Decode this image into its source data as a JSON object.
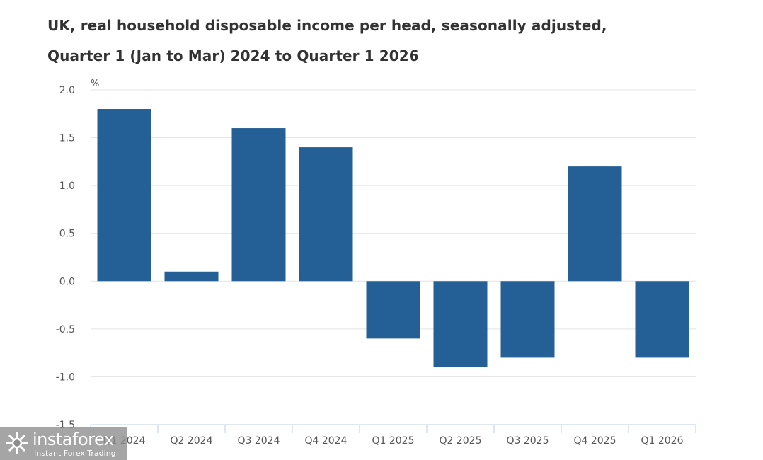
{
  "chart_data": {
    "type": "bar",
    "title": "UK, real household disposable income per head, seasonally adjusted,",
    "subtitle": "Quarter 1 (Jan to Mar) 2024 to Quarter 1 2026",
    "ylabel": "%",
    "xlabel": "",
    "categories": [
      "Q1 2024",
      "Q2 2024",
      "Q3 2024",
      "Q4 2024",
      "Q1 2025",
      "Q2 2025",
      "Q3 2025",
      "Q4 2025",
      "Q1 2026"
    ],
    "values": [
      1.8,
      0.1,
      1.6,
      1.4,
      -0.6,
      -0.9,
      -0.8,
      1.2,
      -0.8
    ],
    "ylim": [
      -1.5,
      2.0
    ],
    "yticks": [
      2.0,
      1.5,
      1.0,
      0.5,
      0.0,
      -0.5,
      -1.0,
      -1.5
    ],
    "ytick_labels": [
      "2.0",
      "1.5",
      "1.0",
      "0.5",
      "0.0",
      "-0.5",
      "-1.0",
      "-1.5"
    ],
    "grid": true,
    "legend": "none",
    "bar_color": "#245f95",
    "grid_color": "#e3e3e3",
    "axis_color": "#bcd0e4"
  },
  "watermark": {
    "brand": "instaforex",
    "tagline": "Instant Forex Trading",
    "icon": "instaforex-logo-icon"
  }
}
